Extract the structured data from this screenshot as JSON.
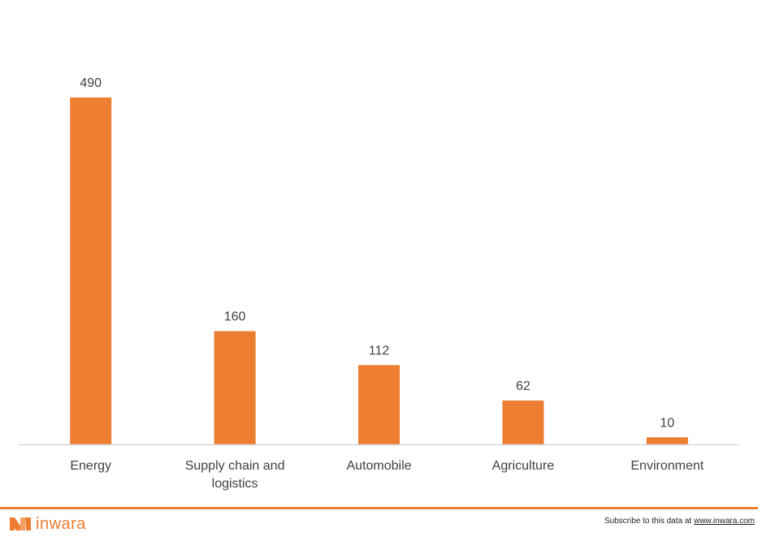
{
  "chart_data": {
    "type": "bar",
    "categories": [
      "Energy",
      "Supply chain and logistics",
      "Automobile",
      "Agriculture",
      "Environment"
    ],
    "category_lines": [
      [
        "Energy"
      ],
      [
        "Supply chain and",
        "logistics"
      ],
      [
        "Automobile"
      ],
      [
        "Agriculture"
      ],
      [
        "Environment"
      ]
    ],
    "values": [
      490,
      160,
      112,
      62,
      10
    ],
    "ylim": [
      0,
      490
    ],
    "grid": false,
    "legend": "none",
    "bar_color": "#ED7D31",
    "axis_color": "#D9D9D9"
  },
  "footer": {
    "logo_text": "inwara",
    "subscribe_prefix": "Subscribe to this data at ",
    "subscribe_link": "www.inwara.com",
    "accent_color": "#ED7D31"
  }
}
